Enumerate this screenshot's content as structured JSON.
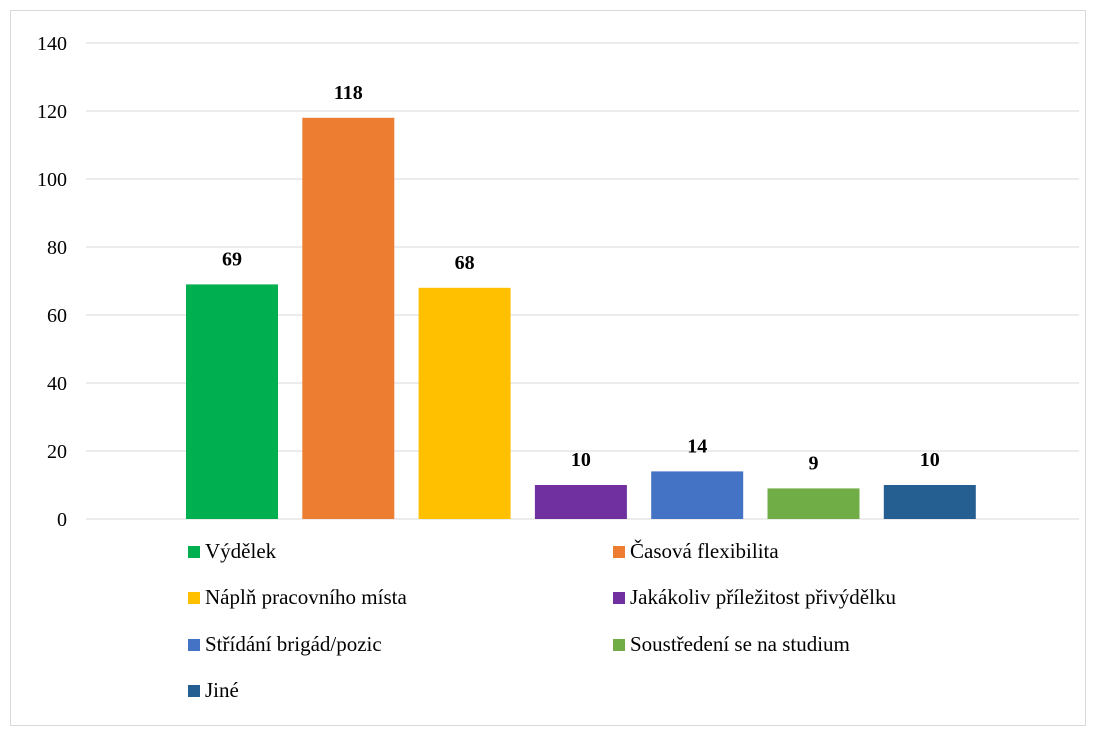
{
  "chart_data": {
    "type": "bar",
    "title": "",
    "xlabel": "",
    "ylabel": "",
    "ylim": [
      0,
      140
    ],
    "yticks": [
      0,
      20,
      40,
      60,
      80,
      100,
      120,
      140
    ],
    "grid": true,
    "legend_position": "bottom",
    "categories": [
      "Výdělek",
      "Časová flexibilita",
      "Náplň pracovního místa",
      "Jakákoliv příležitost přivýdělku",
      "Střídání brigád/pozic",
      "Soustředení se na studium",
      "Jiné"
    ],
    "values": [
      69,
      118,
      68,
      10,
      14,
      9,
      10
    ],
    "colors": [
      "#00b050",
      "#ed7d31",
      "#ffc000",
      "#7030a0",
      "#4472c4",
      "#70ad47",
      "#255e91"
    ],
    "data_labels": [
      "69",
      "118",
      "68",
      "10",
      "14",
      "9",
      "10"
    ]
  }
}
